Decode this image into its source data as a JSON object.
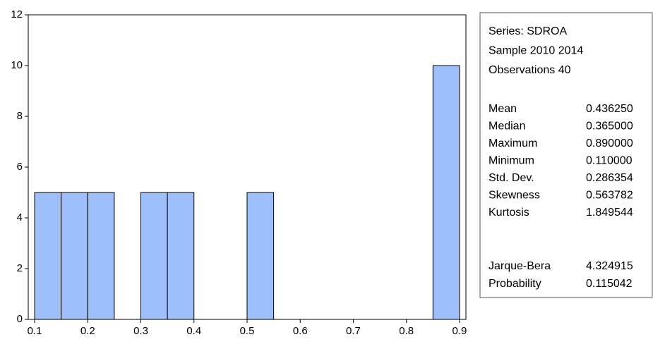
{
  "chart_data": {
    "type": "histogram",
    "bins": [
      0.1,
      0.15,
      0.2,
      0.25,
      0.3,
      0.35,
      0.4,
      0.45,
      0.5,
      0.55,
      0.6,
      0.65,
      0.7,
      0.75,
      0.8,
      0.85,
      0.9
    ],
    "counts": [
      5,
      5,
      5,
      0,
      5,
      5,
      0,
      0,
      5,
      0,
      0,
      0,
      0,
      0,
      0,
      10
    ],
    "color": "#9ebffa",
    "xlim": [
      0.088,
      0.912
    ],
    "xticks": [
      0.1,
      0.2,
      0.3,
      0.4,
      0.5,
      0.6,
      0.7,
      0.8,
      0.9
    ],
    "ylim": [
      0,
      12
    ],
    "yticks": [
      0,
      2,
      4,
      6,
      8,
      10,
      12
    ],
    "stats_box": {
      "lines": [
        "Series: SDROA",
        "Sample 2010 2014",
        "Observations 40"
      ],
      "rows": [
        [
          "Mean",
          "0.436250"
        ],
        [
          "Median",
          "0.365000"
        ],
        [
          "Maximum",
          "0.890000"
        ],
        [
          "Minimum",
          "0.110000"
        ],
        [
          "Std. Dev.",
          "0.286354"
        ],
        [
          "Skewness",
          "0.563782"
        ],
        [
          "Kurtosis",
          "1.849544"
        ]
      ],
      "tests": [
        [
          "Jarque-Bera",
          "4.324915"
        ],
        [
          "Probability",
          "0.115042"
        ]
      ]
    }
  }
}
